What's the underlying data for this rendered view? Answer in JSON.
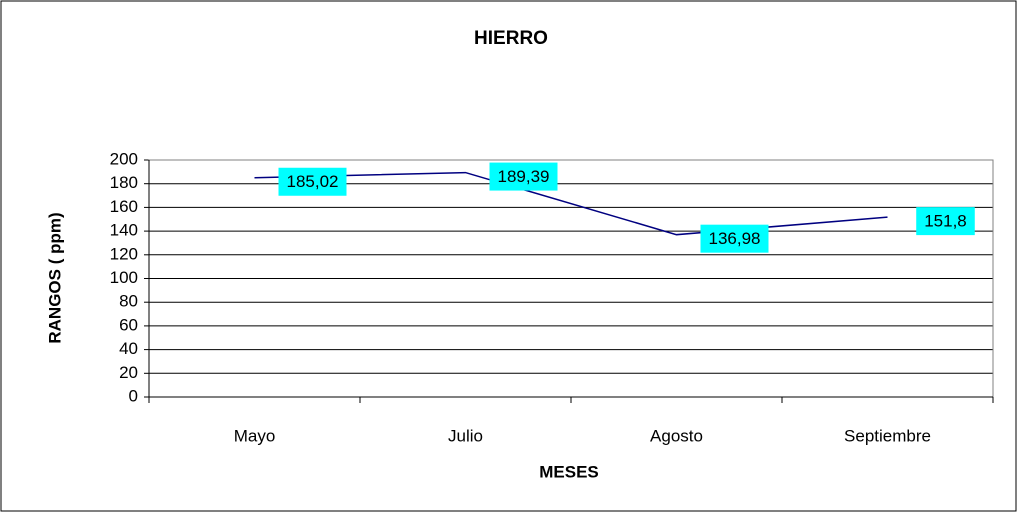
{
  "chart_data": {
    "type": "line",
    "title": "HIERRO",
    "x_label": "MESES",
    "y_label": "RANGOS ( ppm)",
    "categories": [
      "Mayo",
      "Julio",
      "Agosto",
      "Septiembre"
    ],
    "series": [
      {
        "color": "#000080",
        "values": [
          185.02,
          189.39,
          136.98,
          151.8
        ],
        "value_labels": [
          "185,02",
          "189,39",
          "136,98",
          "151,8"
        ]
      }
    ],
    "ylim": [
      0,
      200
    ],
    "yticks": [
      0,
      20,
      40,
      60,
      80,
      100,
      120,
      140,
      160,
      180,
      200
    ],
    "grid": true,
    "label_color": "#00ffff"
  }
}
